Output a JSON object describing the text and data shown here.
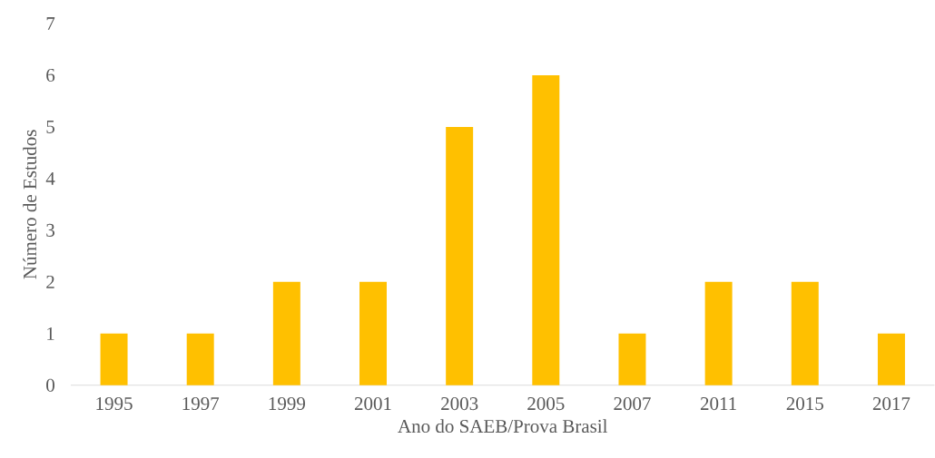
{
  "chart_data": {
    "type": "bar",
    "xlabel": "Ano do SAEB/Prova Brasil",
    "ylabel": "Número de Estudos",
    "categories": [
      "1995",
      "1997",
      "1999",
      "2001",
      "2003",
      "2005",
      "2007",
      "2011",
      "2015",
      "2017"
    ],
    "values": [
      1,
      1,
      2,
      2,
      5,
      6,
      1,
      2,
      2,
      1
    ],
    "color": "#ffc000",
    "ylim": [
      0,
      7
    ],
    "yticks": [
      0,
      1,
      2,
      3,
      4,
      5,
      6,
      7
    ]
  }
}
